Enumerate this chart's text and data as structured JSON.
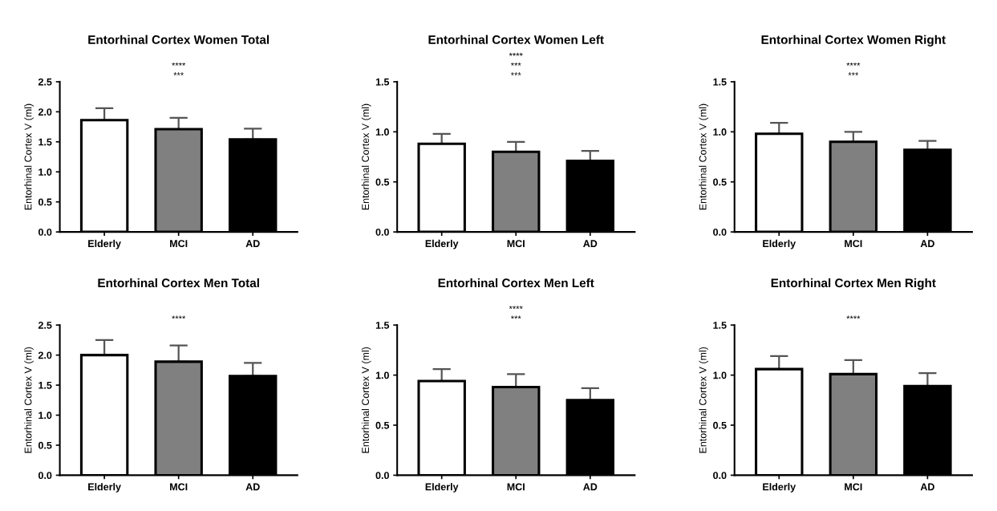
{
  "chart_data": [
    {
      "type": "bar",
      "title": "Entorhinal Cortex Women Total",
      "ylabel": "Entorhinal Cortex V (ml)",
      "categories": [
        "Elderly",
        "MCI",
        "AD"
      ],
      "values": [
        1.86,
        1.71,
        1.54
      ],
      "colors": [
        "#ffffff",
        "#808080",
        "#000000"
      ],
      "errors": [
        [
          1.86,
          2.06
        ],
        [
          1.71,
          1.9
        ],
        [
          1.54,
          1.72
        ]
      ],
      "ylim": [
        0,
        2.5
      ],
      "yticks": [
        {
          "value": 0,
          "label": "0.0"
        },
        0.5,
        {
          "value": 1,
          "label": "1.0"
        },
        1.5,
        {
          "value": 2,
          "label": "2.0"
        },
        2.5
      ],
      "annotations": [
        "****",
        "***"
      ]
    },
    {
      "type": "bar",
      "title": "Entorhinal Cortex Women Left",
      "ylabel": "Entorhinal Cortex V (ml)",
      "categories": [
        "Elderly",
        "MCI",
        "AD"
      ],
      "values": [
        0.88,
        0.8,
        0.71
      ],
      "colors": [
        "#ffffff",
        "#808080",
        "#000000"
      ],
      "errors": [
        [
          0.88,
          0.98
        ],
        [
          0.8,
          0.9
        ],
        [
          0.71,
          0.81
        ]
      ],
      "ylim": [
        0,
        1.5
      ],
      "yticks": [
        {
          "value": 0,
          "label": "0.0"
        },
        0.5,
        {
          "value": 1,
          "label": "1.0"
        },
        1.5
      ],
      "annotations": [
        "****",
        "***",
        "***"
      ]
    },
    {
      "type": "bar",
      "title": "Entorhinal Cortex Women Right",
      "ylabel": "Entorhinal Cortex V (ml)",
      "categories": [
        "Elderly",
        "MCI",
        "AD"
      ],
      "values": [
        0.98,
        0.9,
        0.82
      ],
      "colors": [
        "#ffffff",
        "#808080",
        "#000000"
      ],
      "errors": [
        [
          0.98,
          1.09
        ],
        [
          0.9,
          1.0
        ],
        [
          0.82,
          0.91
        ]
      ],
      "ylim": [
        0,
        1.5
      ],
      "yticks": [
        {
          "value": 0,
          "label": "0.0"
        },
        0.5,
        {
          "value": 1,
          "label": "1.0"
        },
        1.5
      ],
      "annotations": [
        "****",
        "***"
      ]
    },
    {
      "type": "bar",
      "title": "Entorhinal Cortex Men Total",
      "ylabel": "Entorhinal Cortex V (ml)",
      "categories": [
        "Elderly",
        "MCI",
        "AD"
      ],
      "values": [
        2.0,
        1.89,
        1.65
      ],
      "colors": [
        "#ffffff",
        "#808080",
        "#000000"
      ],
      "errors": [
        [
          2.0,
          2.25
        ],
        [
          1.89,
          2.16
        ],
        [
          1.65,
          1.87
        ]
      ],
      "ylim": [
        0,
        2.5
      ],
      "yticks": [
        {
          "value": 0,
          "label": "0.0"
        },
        0.5,
        {
          "value": 1,
          "label": "1.0"
        },
        1.5,
        {
          "value": 2,
          "label": "2.0"
        },
        2.5
      ],
      "annotations": [
        "****"
      ]
    },
    {
      "type": "bar",
      "title": "Entorhinal Cortex Men Left",
      "ylabel": "Entorhinal Cortex V (ml)",
      "categories": [
        "Elderly",
        "MCI",
        "AD"
      ],
      "values": [
        0.94,
        0.88,
        0.75
      ],
      "colors": [
        "#ffffff",
        "#808080",
        "#000000"
      ],
      "errors": [
        [
          0.94,
          1.06
        ],
        [
          0.88,
          1.01
        ],
        [
          0.75,
          0.87
        ]
      ],
      "ylim": [
        0,
        1.5
      ],
      "yticks": [
        {
          "value": 0,
          "label": "0.0"
        },
        0.5,
        {
          "value": 1,
          "label": "1.0"
        },
        1.5
      ],
      "annotations": [
        "****",
        "***"
      ]
    },
    {
      "type": "bar",
      "title": "Entorhinal Cortex Men Right",
      "ylabel": "Entorhinal Cortex V (ml)",
      "categories": [
        "Elderly",
        "MCI",
        "AD"
      ],
      "values": [
        1.06,
        1.01,
        0.89
      ],
      "colors": [
        "#ffffff",
        "#808080",
        "#000000"
      ],
      "errors": [
        [
          1.06,
          1.19
        ],
        [
          1.01,
          1.15
        ],
        [
          0.89,
          1.02
        ]
      ],
      "ylim": [
        0,
        1.5
      ],
      "yticks": [
        {
          "value": 0,
          "label": "0.0"
        },
        0.5,
        {
          "value": 1,
          "label": "1.0"
        },
        1.5
      ],
      "annotations": [
        "****"
      ]
    }
  ]
}
